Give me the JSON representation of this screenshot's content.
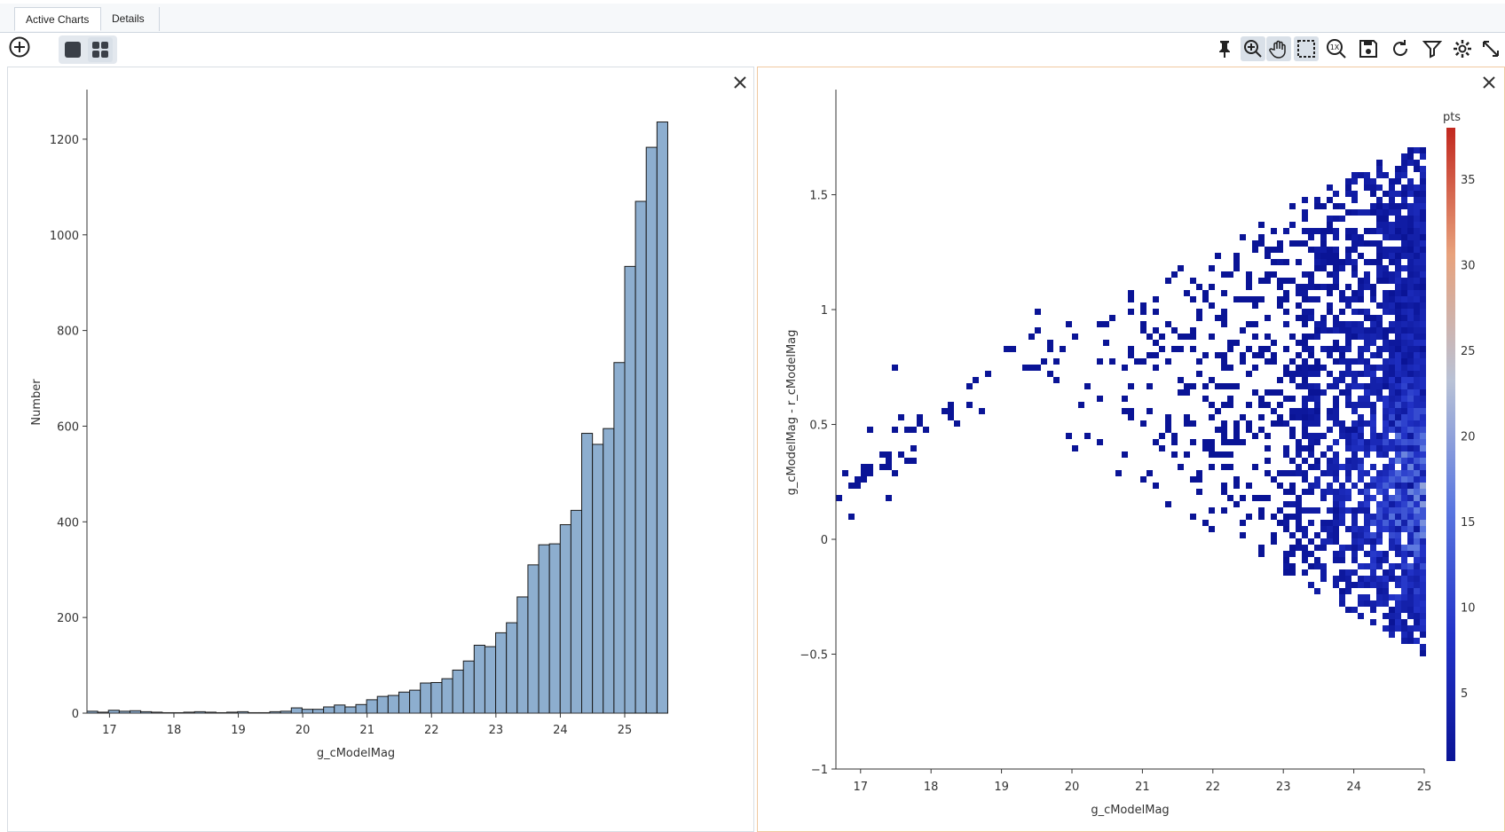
{
  "tabs": [
    {
      "label": "Active Charts"
    },
    {
      "label": "Details"
    }
  ],
  "toolbar": {
    "left_icons": [
      "add-chart-icon",
      "single-layout-icon",
      "grid-layout-icon"
    ],
    "right_icons": [
      "pin-icon",
      "zoom-icon",
      "pan-icon",
      "select-icon",
      "zoom-reset-icon",
      "save-icon",
      "restore-icon",
      "filter-icon",
      "settings-icon",
      "expand-icon"
    ]
  },
  "colors": {
    "bar_fill": "#8daecf",
    "bar_stroke": "#1a1a1a",
    "accent": "#f0c9a0"
  },
  "chart_data": [
    {
      "type": "bar",
      "xlabel": "g_cModelMag",
      "ylabel": "Number",
      "xlim": [
        16.65,
        25.0
      ],
      "ylim": [
        0,
        1300
      ],
      "xticks": [
        "17",
        "18",
        "19",
        "20",
        "21",
        "22",
        "23",
        "24",
        "25"
      ],
      "yticks": [
        "0",
        "200",
        "400",
        "600",
        "800",
        "1000",
        "1200"
      ],
      "bin_start": 16.65,
      "bin_width": 0.167,
      "values": [
        4,
        2,
        6,
        4,
        5,
        3,
        2,
        1,
        1,
        2,
        3,
        2,
        1,
        2,
        3,
        1,
        1,
        3,
        4,
        11,
        8,
        8,
        13,
        17,
        13,
        18,
        28,
        35,
        37,
        44,
        48,
        63,
        64,
        72,
        90,
        109,
        142,
        139,
        168,
        189,
        243,
        310,
        352,
        354,
        394,
        424,
        585,
        562,
        595,
        733,
        934,
        1070,
        1183,
        1236
      ],
      "grid": false
    },
    {
      "type": "heatmap",
      "xlabel": "g_cModelMag",
      "ylabel": "g_cModelMag - r_cModelMag",
      "xlim": [
        16.65,
        25.0
      ],
      "ylim": [
        -1.0,
        1.95
      ],
      "xticks": [
        "17",
        "18",
        "19",
        "20",
        "21",
        "22",
        "23",
        "24",
        "25"
      ],
      "yticks": [
        "−1",
        "−0.5",
        "0",
        "0.5",
        "1",
        "1.5"
      ],
      "colorbar": {
        "title": "pts",
        "min": 1,
        "max": 38,
        "ticks": [
          "5",
          "10",
          "15",
          "20",
          "25",
          "30",
          "35"
        ],
        "colorscale": [
          "#0a1496",
          "#2233c8",
          "#5b78e0",
          "#b9c2d6",
          "#e8a27c",
          "#c2281f"
        ]
      },
      "grid": false
    }
  ]
}
